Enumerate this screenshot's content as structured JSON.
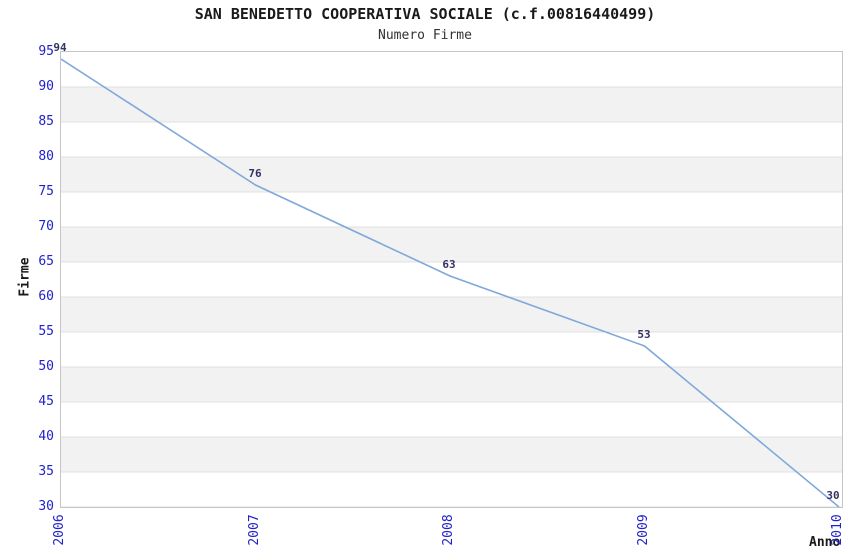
{
  "chart_data": {
    "type": "line",
    "title": "SAN BENEDETTO COOPERATIVA SOCIALE (c.f.00816440499)",
    "subtitle": "Numero Firme",
    "xlabel": "Anno",
    "ylabel": "Firme",
    "categories": [
      "2006",
      "2007",
      "2008",
      "2009",
      "2010"
    ],
    "series": [
      {
        "name": "Numero Firme",
        "values": [
          94,
          76,
          63,
          53,
          30
        ]
      }
    ],
    "ylim": [
      30,
      95
    ],
    "ytick_step": 5,
    "yticks": [
      95,
      90,
      85,
      80,
      75,
      70,
      65,
      60,
      55,
      50,
      45,
      40,
      35,
      30
    ],
    "legend": "none",
    "grid": "horizontal, alternating shaded bands",
    "colors": {
      "line": "#7fa9da",
      "tick_label": "#2222cc",
      "data_label": "#333366",
      "band_fill": "#f2f2f2",
      "gridline": "#e0e0e0",
      "plot_border": "#c6c6c6",
      "text": "#1a1a1a",
      "background": "#ffffff"
    }
  }
}
